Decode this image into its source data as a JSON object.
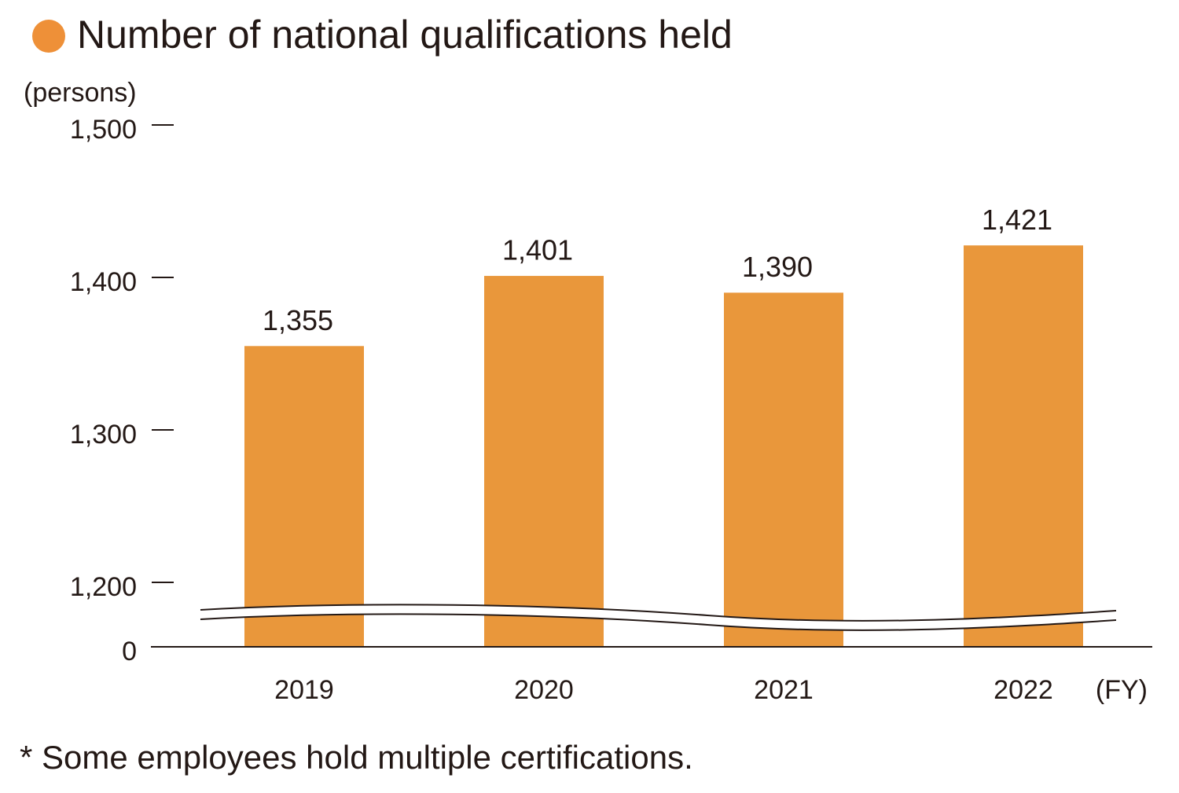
{
  "chart_data": {
    "type": "bar",
    "title": "Number of national qualifications held",
    "y_label": "(persons)",
    "x_label": "(FY)",
    "footnote": "* Some employees hold multiple certifications.",
    "categories": [
      "2019",
      "2020",
      "2021",
      "2022"
    ],
    "values": [
      1355,
      1401,
      1390,
      1421
    ],
    "value_labels": [
      "1,355",
      "1,401",
      "1,390",
      "1,421"
    ],
    "color": "#e9973b",
    "ylim": [
      0,
      1500
    ],
    "ybreak": [
      0,
      1200
    ],
    "yticks": [
      0,
      {
        "value": 1200,
        "label": "1,200"
      },
      {
        "value": 1300,
        "label": "1,300"
      },
      {
        "value": 1400,
        "label": "1,400"
      },
      {
        "value": 1500,
        "label": "1,500"
      }
    ]
  }
}
